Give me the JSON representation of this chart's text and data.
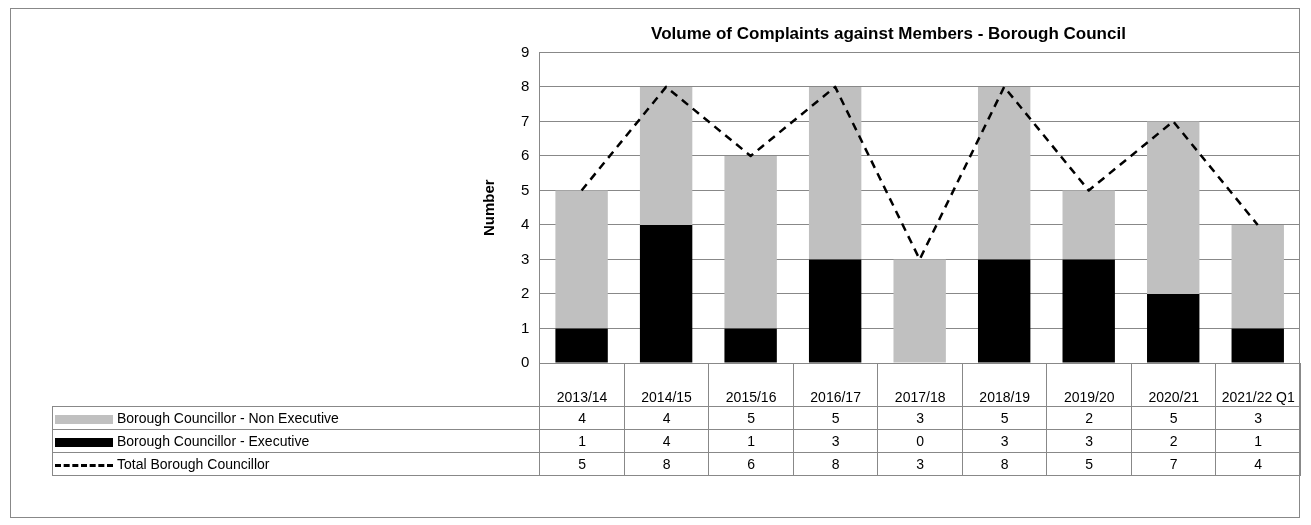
{
  "chart_data": {
    "type": "bar",
    "title": "Volume of Complaints against Members - Borough Council",
    "ylabel": "Number",
    "categories": [
      "2013/14",
      "2014/15",
      "2015/16",
      "2016/17",
      "2017/18",
      "2018/19",
      "2019/20",
      "2020/21",
      "2021/22 Q1"
    ],
    "stacked": true,
    "ylim": [
      0,
      9
    ],
    "yticks": [
      0,
      1,
      2,
      3,
      4,
      5,
      6,
      7,
      8,
      9
    ],
    "grid": "y",
    "legend": "bottom",
    "data_labels": true,
    "marker": "none",
    "series": [
      {
        "name": "Borough Councillor - Executive",
        "color": "#000000",
        "values": [
          1,
          4,
          1,
          3,
          0,
          3,
          3,
          2,
          1
        ]
      },
      {
        "name": "Borough Councillor - Non Executive",
        "color": "#c0c0c0",
        "values": [
          4,
          4,
          5,
          5,
          3,
          5,
          2,
          5,
          3
        ]
      },
      {
        "name": "Total Borough Councillor",
        "type": "line",
        "color": "#000000",
        "line_style": "dashed",
        "values": [
          5,
          8,
          6,
          8,
          3,
          8,
          5,
          7,
          4
        ]
      }
    ]
  }
}
